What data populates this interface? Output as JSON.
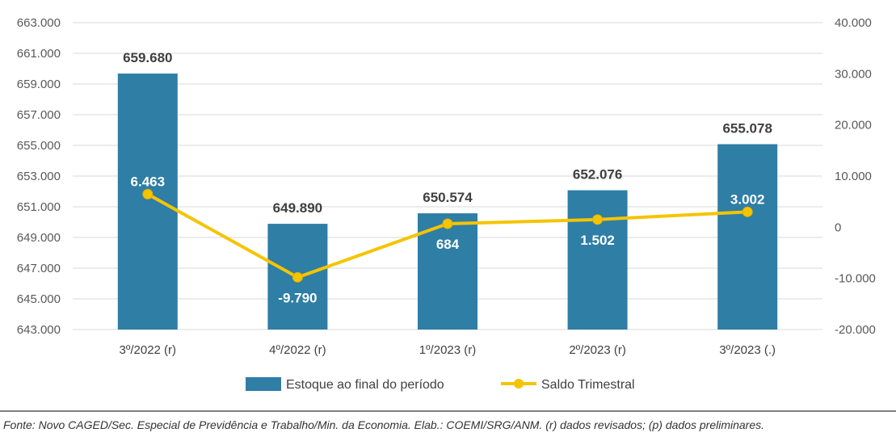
{
  "chart_data": {
    "type": "bar",
    "categories": [
      "3º/2022 (r)",
      "4º/2022 (r)",
      "1º/2023 (r)",
      "2º/2023 (r)",
      "3º/2023 (.)"
    ],
    "series": [
      {
        "name": "Estoque ao final do período",
        "type": "bar",
        "axis": "left",
        "values": [
          659680,
          649890,
          650574,
          652076,
          655078
        ],
        "labels": [
          "659.680",
          "649.890",
          "650.574",
          "652.076",
          "655.078"
        ],
        "color": "#2e7ea6"
      },
      {
        "name": "Saldo Trimestral",
        "type": "line",
        "axis": "right",
        "values": [
          6463,
          -9790,
          684,
          1502,
          3002
        ],
        "labels": [
          "6.463",
          "-9.790",
          "684",
          "1.502",
          "3.002"
        ],
        "color": "#f5c400"
      }
    ],
    "y_left": {
      "ylim": [
        643000,
        663000
      ],
      "ticks": [
        643000,
        645000,
        647000,
        649000,
        651000,
        653000,
        655000,
        657000,
        659000,
        661000,
        663000
      ],
      "tick_labels": [
        "643.000",
        "645.000",
        "647.000",
        "649.000",
        "651.000",
        "653.000",
        "655.000",
        "657.000",
        "659.000",
        "661.000",
        "663.000"
      ]
    },
    "y_right": {
      "ylim": [
        -20000,
        40000
      ],
      "ticks": [
        -20000,
        -10000,
        0,
        10000,
        20000,
        30000,
        40000
      ],
      "tick_labels": [
        "-20.000",
        "-10.000",
        "0",
        "10.000",
        "20.000",
        "30.000",
        "40.000"
      ]
    },
    "grid": true,
    "legend": "bottom"
  },
  "source_note": "Fonte: Novo CAGED/Sec. Especial de Previdência e Trabalho/Min. da Economia. Elab.: COEMI/SRG/ANM. (r) dados revisados; (p) dados preliminares."
}
